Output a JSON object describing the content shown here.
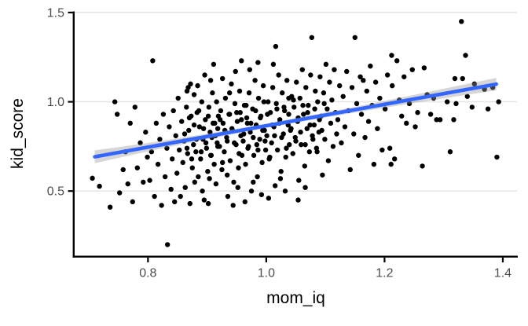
{
  "chart_data": {
    "type": "scatter",
    "title": "",
    "xlabel": "mom_iq",
    "ylabel": "kid_score",
    "xlim": [
      0.676,
      1.424
    ],
    "ylim": [
      0.138,
      1.502
    ],
    "x_ticks": [
      0.8,
      1.0,
      1.2,
      1.4
    ],
    "x_tick_labels": [
      "0.8",
      "1.0",
      "1.2",
      "1.4"
    ],
    "y_ticks": [
      0.5,
      1.0,
      1.5
    ],
    "y_tick_labels": [
      "0.5",
      "1.0",
      "1.5"
    ],
    "grid": "horizontal-major-only",
    "legend": "none",
    "colors": {
      "point": "#000000",
      "smooth_line": "#3366FF",
      "ci_band": "#999999",
      "ci_band_opacity": 0.4,
      "gridline": "#E6E6E6",
      "axis": "#000000",
      "tick_label": "#4D4D4D",
      "axis_title": "#000000"
    },
    "regression_line": {
      "x": [
        0.71,
        1.389
      ],
      "y": [
        0.692,
        1.099
      ]
    },
    "ci_band": [
      {
        "x": 0.71,
        "lo": 0.656,
        "hi": 0.728
      },
      {
        "x": 0.75,
        "lo": 0.686,
        "hi": 0.746
      },
      {
        "x": 0.8,
        "lo": 0.722,
        "hi": 0.77
      },
      {
        "x": 0.85,
        "lo": 0.757,
        "hi": 0.795
      },
      {
        "x": 0.9,
        "lo": 0.791,
        "hi": 0.821
      },
      {
        "x": 0.95,
        "lo": 0.823,
        "hi": 0.849
      },
      {
        "x": 1.0,
        "lo": 0.854,
        "hi": 0.878
      },
      {
        "x": 1.05,
        "lo": 0.884,
        "hi": 0.908
      },
      {
        "x": 1.1,
        "lo": 0.912,
        "hi": 0.94
      },
      {
        "x": 1.15,
        "lo": 0.94,
        "hi": 0.972
      },
      {
        "x": 1.2,
        "lo": 0.967,
        "hi": 1.005
      },
      {
        "x": 1.25,
        "lo": 0.993,
        "hi": 1.039
      },
      {
        "x": 1.3,
        "lo": 1.019,
        "hi": 1.073
      },
      {
        "x": 1.35,
        "lo": 1.045,
        "hi": 1.107
      },
      {
        "x": 1.389,
        "lo": 1.064,
        "hi": 1.134
      }
    ],
    "points": [
      [
        0.706,
        0.572
      ],
      [
        0.718,
        0.527
      ],
      [
        0.736,
        0.41
      ],
      [
        0.744,
        1.0
      ],
      [
        0.748,
        0.93
      ],
      [
        0.752,
        0.49
      ],
      [
        0.758,
        0.62
      ],
      [
        0.762,
        0.72
      ],
      [
        0.766,
        0.54
      ],
      [
        0.77,
        0.88
      ],
      [
        0.774,
        0.44
      ],
      [
        0.778,
        0.97
      ],
      [
        0.782,
        0.63
      ],
      [
        0.787,
        0.77
      ],
      [
        0.792,
        0.55
      ],
      [
        0.796,
        0.83
      ],
      [
        0.799,
        0.69
      ],
      [
        0.803,
        0.56
      ],
      [
        0.806,
        0.72
      ],
      [
        0.808,
        1.23
      ],
      [
        0.811,
        0.47
      ],
      [
        0.814,
        0.88
      ],
      [
        0.817,
        0.65
      ],
      [
        0.82,
        0.79
      ],
      [
        0.823,
        0.42
      ],
      [
        0.826,
        0.93
      ],
      [
        0.829,
        0.58
      ],
      [
        0.832,
        0.74
      ],
      [
        0.833,
        0.2
      ],
      [
        0.836,
        0.86
      ],
      [
        0.839,
        0.51
      ],
      [
        0.841,
        0.68
      ],
      [
        0.843,
        0.95
      ],
      [
        0.845,
        0.44
      ],
      [
        0.847,
        0.81
      ],
      [
        0.849,
        0.6
      ],
      [
        0.851,
        1.02
      ],
      [
        0.853,
        0.73
      ],
      [
        0.855,
        0.47
      ],
      [
        0.857,
        0.89
      ],
      [
        0.859,
        0.66
      ],
      [
        0.861,
        0.78
      ],
      [
        0.863,
        0.52
      ],
      [
        0.865,
        0.97
      ],
      [
        0.867,
        0.71
      ],
      [
        0.869,
        0.84
      ],
      [
        0.871,
        0.43
      ],
      [
        0.873,
        0.92
      ],
      [
        0.875,
        0.63
      ],
      [
        0.877,
        0.76
      ],
      [
        0.879,
        0.55
      ],
      [
        0.866,
        1.06
      ],
      [
        0.872,
        1.1
      ],
      [
        0.868,
        1.08
      ],
      [
        0.878,
        1.04
      ],
      [
        0.881,
        0.72
      ],
      [
        0.883,
        0.94
      ],
      [
        0.885,
        0.58
      ],
      [
        0.887,
        0.86
      ],
      [
        0.889,
        0.68
      ],
      [
        0.891,
        1.0
      ],
      [
        0.893,
        0.79
      ],
      [
        0.895,
        0.45
      ],
      [
        0.897,
        0.9
      ],
      [
        0.899,
        0.74
      ],
      [
        0.901,
        0.61
      ],
      [
        0.903,
        0.97
      ],
      [
        0.905,
        0.83
      ],
      [
        0.907,
        0.7
      ],
      [
        0.909,
        1.05
      ],
      [
        0.911,
        1.21
      ],
      [
        0.913,
        0.88
      ],
      [
        0.915,
        0.54
      ],
      [
        0.917,
        0.77
      ],
      [
        0.919,
        0.92
      ],
      [
        0.902,
        0.43
      ],
      [
        0.906,
        1.12
      ],
      [
        0.912,
        0.65
      ],
      [
        0.916,
        1.0
      ],
      [
        0.884,
        1.09
      ],
      [
        0.892,
        0.5
      ],
      [
        0.896,
        1.15
      ],
      [
        0.904,
        0.57
      ],
      [
        0.908,
        0.8
      ],
      [
        0.918,
        0.85
      ],
      [
        0.921,
        0.75
      ],
      [
        0.923,
        0.95
      ],
      [
        0.925,
        0.62
      ],
      [
        0.927,
        0.88
      ],
      [
        0.929,
        0.72
      ],
      [
        0.931,
        1.02
      ],
      [
        0.933,
        0.8
      ],
      [
        0.935,
        0.47
      ],
      [
        0.937,
        0.93
      ],
      [
        0.939,
        0.67
      ],
      [
        0.941,
        1.1
      ],
      [
        0.943,
        0.84
      ],
      [
        0.945,
        0.55
      ],
      [
        0.947,
        0.99
      ],
      [
        0.949,
        0.76
      ],
      [
        0.951,
        0.89
      ],
      [
        0.953,
        0.63
      ],
      [
        0.955,
        1.06
      ],
      [
        0.957,
        0.81
      ],
      [
        0.958,
        1.23
      ],
      [
        0.959,
        0.7
      ],
      [
        0.944,
        0.42
      ],
      [
        0.948,
        1.17
      ],
      [
        0.952,
        0.52
      ],
      [
        0.926,
        1.13
      ],
      [
        0.934,
        0.59
      ],
      [
        0.938,
        1.05
      ],
      [
        0.956,
        0.94
      ],
      [
        0.961,
        0.78
      ],
      [
        0.963,
        0.98
      ],
      [
        0.965,
        0.65
      ],
      [
        0.967,
        0.91
      ],
      [
        0.969,
        0.74
      ],
      [
        0.971,
        1.05
      ],
      [
        0.973,
        0.83
      ],
      [
        0.975,
        0.5
      ],
      [
        0.977,
        0.96
      ],
      [
        0.979,
        0.7
      ],
      [
        0.981,
        1.12
      ],
      [
        0.983,
        0.87
      ],
      [
        0.985,
        0.58
      ],
      [
        0.987,
        1.02
      ],
      [
        0.989,
        0.79
      ],
      [
        0.991,
        0.92
      ],
      [
        0.993,
        0.66
      ],
      [
        0.995,
        1.09
      ],
      [
        0.997,
        0.84
      ],
      [
        0.999,
        0.73
      ],
      [
        0.964,
        0.44
      ],
      [
        0.972,
        1.18
      ],
      [
        0.978,
        0.55
      ],
      [
        0.986,
        1.22
      ],
      [
        0.992,
        0.48
      ],
      [
        0.996,
        1.0
      ],
      [
        0.968,
        0.88
      ],
      [
        0.984,
        0.76
      ],
      [
        1.001,
        0.81
      ],
      [
        1.003,
        1.0
      ],
      [
        1.005,
        0.68
      ],
      [
        1.007,
        0.94
      ],
      [
        1.009,
        0.77
      ],
      [
        1.011,
        1.08
      ],
      [
        1.013,
        0.86
      ],
      [
        1.015,
        0.53
      ],
      [
        1.016,
        1.31
      ],
      [
        1.017,
        0.99
      ],
      [
        1.019,
        0.73
      ],
      [
        1.021,
        1.15
      ],
      [
        1.023,
        0.9
      ],
      [
        1.025,
        0.61
      ],
      [
        1.027,
        1.05
      ],
      [
        1.029,
        0.82
      ],
      [
        1.031,
        0.95
      ],
      [
        1.033,
        0.69
      ],
      [
        1.035,
        1.12
      ],
      [
        1.037,
        0.87
      ],
      [
        1.039,
        0.76
      ],
      [
        1.004,
        0.46
      ],
      [
        1.012,
        1.21
      ],
      [
        1.024,
        0.57
      ],
      [
        1.032,
        0.5
      ],
      [
        1.038,
        1.02
      ],
      [
        1.041,
        0.84
      ],
      [
        1.043,
        1.03
      ],
      [
        1.045,
        0.71
      ],
      [
        1.047,
        0.97
      ],
      [
        1.049,
        0.8
      ],
      [
        1.051,
        1.11
      ],
      [
        1.053,
        0.89
      ],
      [
        1.055,
        0.56
      ],
      [
        1.057,
        1.02
      ],
      [
        1.059,
        0.76
      ],
      [
        1.061,
        1.18
      ],
      [
        1.063,
        0.93
      ],
      [
        1.065,
        0.64
      ],
      [
        1.067,
        1.08
      ],
      [
        1.069,
        0.85
      ],
      [
        1.071,
        0.98
      ],
      [
        1.073,
        0.72
      ],
      [
        1.075,
        1.15
      ],
      [
        1.077,
        1.36
      ],
      [
        1.079,
        0.79
      ],
      [
        1.054,
        0.45
      ],
      [
        1.066,
        0.52
      ],
      [
        1.081,
        0.87
      ],
      [
        1.083,
        1.06
      ],
      [
        1.085,
        0.74
      ],
      [
        1.087,
        1.0
      ],
      [
        1.089,
        0.83
      ],
      [
        1.091,
        1.14
      ],
      [
        1.093,
        0.92
      ],
      [
        1.095,
        0.59
      ],
      [
        1.097,
        1.05
      ],
      [
        1.099,
        0.79
      ],
      [
        1.101,
        1.21
      ],
      [
        1.103,
        0.96
      ],
      [
        1.105,
        0.67
      ],
      [
        1.107,
        1.11
      ],
      [
        1.109,
        0.88
      ],
      [
        1.111,
        1.01
      ],
      [
        1.113,
        0.75
      ],
      [
        1.115,
        1.18
      ],
      [
        1.117,
        0.94
      ],
      [
        1.119,
        0.82
      ],
      [
        1.121,
        0.9
      ],
      [
        1.124,
        1.09
      ],
      [
        1.127,
        0.77
      ],
      [
        1.13,
        1.03
      ],
      [
        1.133,
        0.86
      ],
      [
        1.136,
        1.17
      ],
      [
        1.139,
        0.95
      ],
      [
        1.142,
        0.62
      ],
      [
        1.145,
        1.08
      ],
      [
        1.148,
        0.82
      ],
      [
        1.15,
        1.36
      ],
      [
        1.153,
        0.99
      ],
      [
        1.156,
        0.7
      ],
      [
        1.159,
        1.14
      ],
      [
        1.161,
        0.93
      ],
      [
        1.164,
        1.12
      ],
      [
        1.167,
        0.8
      ],
      [
        1.17,
        1.06
      ],
      [
        1.173,
        0.89
      ],
      [
        1.176,
        1.2
      ],
      [
        1.179,
        0.98
      ],
      [
        1.182,
        0.65
      ],
      [
        1.185,
        1.11
      ],
      [
        1.188,
        0.85
      ],
      [
        1.192,
        1.02
      ],
      [
        1.196,
        0.73
      ],
      [
        1.201,
        0.96
      ],
      [
        1.205,
        1.15
      ],
      [
        1.209,
        0.74
      ],
      [
        1.211,
        0.65
      ],
      [
        1.212,
        1.26
      ],
      [
        1.213,
        1.09
      ],
      [
        1.217,
        0.68
      ],
      [
        1.221,
        1.23
      ],
      [
        1.225,
        1.01
      ],
      [
        1.229,
        0.92
      ],
      [
        1.233,
        1.14
      ],
      [
        1.237,
        0.88
      ],
      [
        1.242,
        0.99
      ],
      [
        1.247,
        1.18
      ],
      [
        1.252,
        0.86
      ],
      [
        1.256,
        0.94
      ],
      [
        1.264,
        0.64
      ],
      [
        1.267,
        1.19
      ],
      [
        1.272,
        1.04
      ],
      [
        1.278,
        0.93
      ],
      [
        1.283,
        1.02
      ],
      [
        1.288,
        0.9
      ],
      [
        1.294,
        0.9
      ],
      [
        1.306,
        1.0
      ],
      [
        1.311,
        0.72
      ],
      [
        1.317,
        0.9
      ],
      [
        1.319,
        1.13
      ],
      [
        1.321,
        0.99
      ],
      [
        1.33,
        1.45
      ],
      [
        1.332,
        1.13
      ],
      [
        1.337,
        1.26
      ],
      [
        1.34,
        1.03
      ],
      [
        1.348,
        0.97
      ],
      [
        1.352,
        1.1
      ],
      [
        1.369,
        1.07
      ],
      [
        1.375,
        0.96
      ],
      [
        1.383,
        1.08
      ],
      [
        1.39,
        0.69
      ],
      [
        1.393,
        1.0
      ],
      [
        0.862,
        0.82
      ],
      [
        0.866,
        0.74
      ],
      [
        0.87,
        0.91
      ],
      [
        0.874,
        0.68
      ],
      [
        0.878,
        0.87
      ],
      [
        0.882,
        0.79
      ],
      [
        0.886,
        0.95
      ],
      [
        0.89,
        0.72
      ],
      [
        0.894,
        0.85
      ],
      [
        0.898,
        0.77
      ],
      [
        0.902,
        0.92
      ],
      [
        0.906,
        0.7
      ],
      [
        0.91,
        0.88
      ],
      [
        0.914,
        0.81
      ],
      [
        0.918,
        0.75
      ],
      [
        0.922,
        0.9
      ],
      [
        0.926,
        0.66
      ],
      [
        0.93,
        0.84
      ],
      [
        0.934,
        0.78
      ],
      [
        0.938,
        0.93
      ],
      [
        0.942,
        0.85
      ],
      [
        0.946,
        0.77
      ],
      [
        0.95,
        0.94
      ],
      [
        0.954,
        0.71
      ],
      [
        0.958,
        0.9
      ],
      [
        0.962,
        0.82
      ],
      [
        0.966,
        0.98
      ],
      [
        0.97,
        0.75
      ],
      [
        0.974,
        0.88
      ],
      [
        0.978,
        0.8
      ],
      [
        0.982,
        0.95
      ],
      [
        0.986,
        0.73
      ],
      [
        0.99,
        0.91
      ],
      [
        0.994,
        0.84
      ],
      [
        0.998,
        0.78
      ],
      [
        1.002,
        0.93
      ],
      [
        1.006,
        0.69
      ],
      [
        1.01,
        0.87
      ],
      [
        1.014,
        0.81
      ],
      [
        1.018,
        0.96
      ],
      [
        1.022,
        0.88
      ],
      [
        1.026,
        0.8
      ],
      [
        1.03,
        0.97
      ],
      [
        1.034,
        0.74
      ],
      [
        1.038,
        0.93
      ],
      [
        1.042,
        0.85
      ],
      [
        1.046,
        1.01
      ],
      [
        1.05,
        0.78
      ],
      [
        1.054,
        0.91
      ],
      [
        1.058,
        0.83
      ],
      [
        1.062,
        0.98
      ],
      [
        1.066,
        0.76
      ],
      [
        1.07,
        0.94
      ],
      [
        1.074,
        0.87
      ],
      [
        1.078,
        0.81
      ],
      [
        1.082,
        0.96
      ],
      [
        1.086,
        0.72
      ],
      [
        1.09,
        0.9
      ],
      [
        1.094,
        0.84
      ],
      [
        1.098,
        0.99
      ]
    ]
  }
}
